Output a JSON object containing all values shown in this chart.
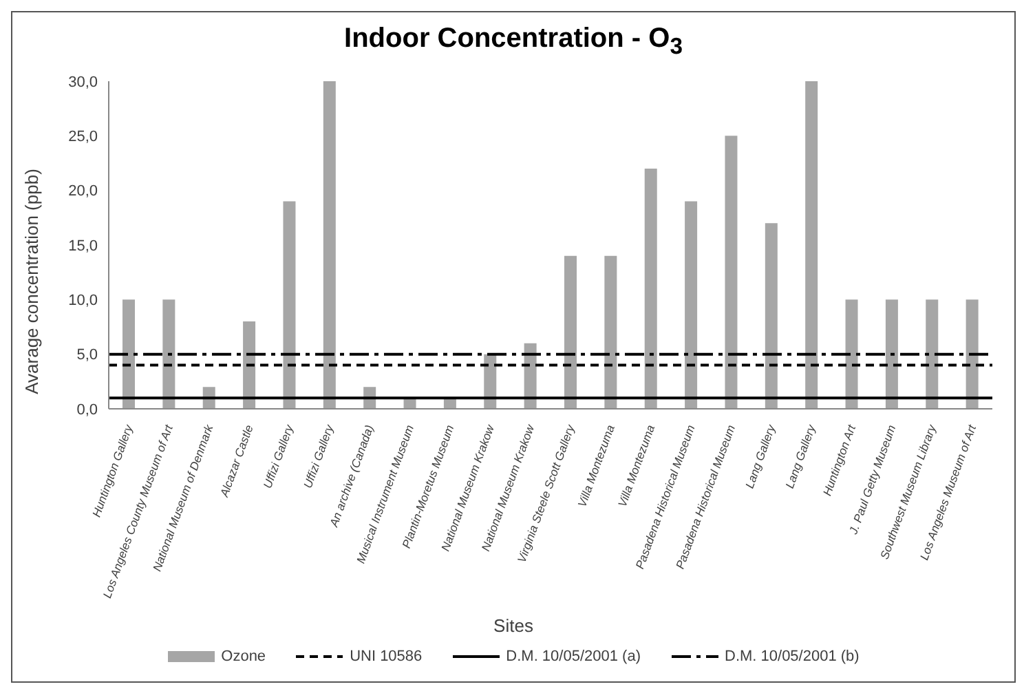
{
  "chart_data": {
    "type": "bar",
    "title": "Indoor Concentration - O$_{3}$",
    "xlabel": "Sites",
    "ylabel": "Avarage concentration (ppb)",
    "categories": [
      "Huntington Gallery",
      "Los Angeles County Museum of Art",
      "National Museum of Denmark",
      "Alcazar Castle",
      "Uffizi Gallery",
      "Uffizi Gallery",
      "An archive (Canada)",
      "Musical Instrument Museum",
      "Plantin-Moretus Museum",
      "National Museum Krakow",
      "National Museum Krakow",
      "Virginia Steele Scott Gallery",
      "Villa Montezuma",
      "Villa Montezuma",
      "Pasadena Historical Museum",
      "Pasadena Historical Museum",
      "Lang Gallery",
      "Lang Gallery",
      "Huntington Art",
      "J. Paul Getty Museum",
      "Southwest Museum Library",
      "Los Angeles Museum of Art"
    ],
    "series": [
      {
        "name": "Ozone",
        "color": "#a6a6a6",
        "values": [
          10,
          10,
          2,
          8,
          19,
          30,
          2,
          1,
          1,
          5,
          6,
          14,
          14,
          22,
          19,
          25,
          17,
          30,
          10,
          10,
          10,
          10
        ]
      }
    ],
    "ylim": [
      0,
      30
    ],
    "yticks": [
      {
        "value": 0,
        "label": "0,0"
      },
      {
        "value": 5,
        "label": "5,0"
      },
      {
        "value": 10,
        "label": "10,0"
      },
      {
        "value": 15,
        "label": "15,0"
      },
      {
        "value": 20,
        "label": "20,0"
      },
      {
        "value": 25,
        "label": "25,0"
      },
      {
        "value": 30,
        "label": "30,0"
      }
    ],
    "ref_lines": [
      {
        "axis": "y",
        "value": 4,
        "label": "UNI 10586",
        "color": "#000000",
        "line_style": "dashed"
      },
      {
        "axis": "y",
        "value": 1,
        "label": "D.M. 10/05/2001 (a)",
        "color": "#000000",
        "line_style": "solid"
      },
      {
        "axis": "y",
        "value": 5,
        "label": "D.M. 10/05/2001 (b)",
        "color": "#000000",
        "line_style": "dashdot"
      }
    ],
    "grid": false,
    "legend": "bottom"
  }
}
